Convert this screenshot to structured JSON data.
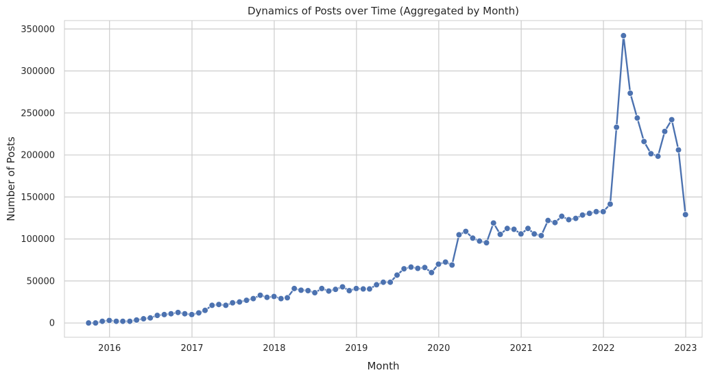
{
  "chart_data": {
    "type": "line",
    "title": "Dynamics of Posts over Time (Aggregated by Month)",
    "xlabel": "Month",
    "ylabel": "Number of Posts",
    "x_tick_labels": [
      "2016",
      "2017",
      "2018",
      "2019",
      "2020",
      "2021",
      "2022",
      "2023"
    ],
    "y_tick_labels": [
      "0",
      "50000",
      "100000",
      "150000",
      "200000",
      "250000",
      "300000",
      "350000"
    ],
    "y_ticks": [
      0,
      50000,
      100000,
      150000,
      200000,
      250000,
      300000,
      350000
    ],
    "xlim": [
      "2015-06-15",
      "2023-03-15"
    ],
    "ylim": [
      -17000,
      360000
    ],
    "grid": true,
    "colors": {
      "line": "#4c72b0",
      "grid": "#cccccc",
      "axes_edge": "#cccccc",
      "background": "#ffffff"
    },
    "series": [
      {
        "x": [
          "2015-09-30",
          "2015-10-31",
          "2015-11-30",
          "2015-12-31",
          "2016-01-31",
          "2016-02-29",
          "2016-03-31",
          "2016-04-30",
          "2016-05-31",
          "2016-06-30",
          "2016-07-31",
          "2016-08-31",
          "2016-09-30",
          "2016-10-31",
          "2016-11-30",
          "2016-12-31",
          "2017-01-31",
          "2017-02-28",
          "2017-03-31",
          "2017-04-30",
          "2017-05-31",
          "2017-06-30",
          "2017-07-31",
          "2017-08-31",
          "2017-09-30",
          "2017-10-31",
          "2017-11-30",
          "2017-12-31",
          "2018-01-31",
          "2018-02-28",
          "2018-03-31",
          "2018-04-30",
          "2018-05-31",
          "2018-06-30",
          "2018-07-31",
          "2018-08-31",
          "2018-09-30",
          "2018-10-31",
          "2018-11-30",
          "2018-12-31",
          "2019-01-31",
          "2019-02-28",
          "2019-03-31",
          "2019-04-30",
          "2019-05-31",
          "2019-06-30",
          "2019-07-31",
          "2019-08-31",
          "2019-09-30",
          "2019-10-31",
          "2019-11-30",
          "2019-12-31",
          "2020-01-31",
          "2020-02-29",
          "2020-03-31",
          "2020-04-30",
          "2020-05-31",
          "2020-06-30",
          "2020-07-31",
          "2020-08-31",
          "2020-09-30",
          "2020-10-31",
          "2020-11-30",
          "2020-12-31",
          "2021-01-31",
          "2021-02-28",
          "2021-03-31",
          "2021-04-30",
          "2021-05-31",
          "2021-06-30",
          "2021-07-31",
          "2021-08-31",
          "2021-09-30",
          "2021-10-31",
          "2021-11-30",
          "2021-12-31",
          "2022-01-31",
          "2022-02-28",
          "2022-03-31",
          "2022-04-30",
          "2022-05-31",
          "2022-06-30",
          "2022-07-31",
          "2022-08-31",
          "2022-09-30",
          "2022-10-31",
          "2022-11-30",
          "2022-12-31"
        ],
        "y": [
          0,
          0,
          2000,
          3000,
          2000,
          2000,
          2000,
          3500,
          5000,
          6000,
          9000,
          10000,
          11000,
          12500,
          11000,
          10000,
          12000,
          15000,
          21000,
          22000,
          21000,
          24000,
          25000,
          27000,
          29000,
          33000,
          30500,
          31500,
          29000,
          30000,
          41000,
          39000,
          38500,
          36000,
          41000,
          38000,
          40000,
          43000,
          38500,
          41000,
          40500,
          40500,
          45500,
          48500,
          48500,
          57000,
          64500,
          66500,
          65000,
          66000,
          60000,
          70000,
          72500,
          69000,
          105000,
          109000,
          101000,
          97500,
          95500,
          119000,
          105500,
          112500,
          111500,
          106000,
          112500,
          106000,
          104000,
          122000,
          119500,
          127000,
          123000,
          124500,
          128500,
          130500,
          132500,
          132500,
          141500,
          233000,
          342000,
          273500,
          244000,
          216000,
          201500,
          198500,
          228000,
          242000,
          206000,
          129000
        ]
      }
    ]
  }
}
